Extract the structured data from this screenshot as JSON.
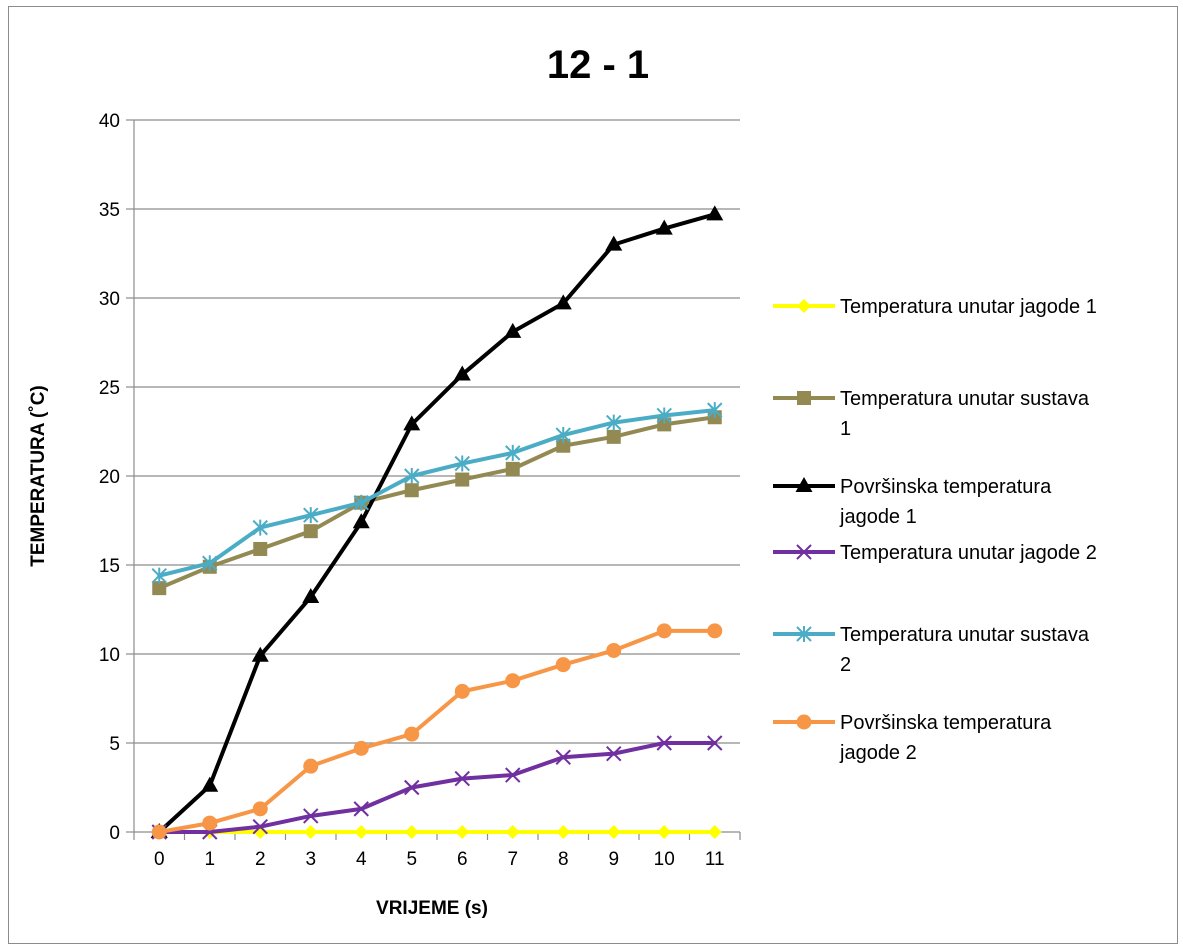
{
  "chart_data": {
    "type": "line",
    "title": "12 - 1",
    "xlabel": "VRIJEME (s)",
    "ylabel": "TEMPERATURA (˚C)",
    "categories": [
      "0",
      "1",
      "2",
      "3",
      "4",
      "5",
      "6",
      "7",
      "8",
      "9",
      "10",
      "11"
    ],
    "ylim": [
      0,
      40
    ],
    "yticks": [
      0,
      5,
      10,
      15,
      20,
      25,
      30,
      35,
      40
    ],
    "grid": true,
    "legend_position": "right",
    "series": [
      {
        "name": "Temperatura unutar jagode 1",
        "color": "#ffff00",
        "marker": "diamond",
        "values": [
          0,
          0,
          0,
          0,
          0,
          0,
          0,
          0,
          0,
          0,
          0,
          0
        ]
      },
      {
        "name": "Temperatura unutar sustava 1",
        "color": "#938953",
        "marker": "square",
        "values": [
          13.7,
          14.9,
          15.9,
          16.9,
          18.5,
          19.2,
          19.8,
          20.4,
          21.7,
          22.2,
          22.9,
          23.3
        ]
      },
      {
        "name": "Površinska temperatura jagode 1",
        "color": "#000000",
        "marker": "triangle",
        "values": [
          0,
          2.6,
          9.9,
          13.2,
          17.4,
          22.9,
          25.7,
          28.1,
          29.7,
          33.0,
          33.9,
          34.7
        ]
      },
      {
        "name": "Temperatura unutar jagode 2",
        "color": "#7030a0",
        "marker": "x",
        "values": [
          0,
          0,
          0.3,
          0.9,
          1.3,
          2.5,
          3.0,
          3.2,
          4.2,
          4.4,
          5.0,
          5.0
        ]
      },
      {
        "name": "Temperatura unutar sustava 2",
        "color": "#4bacc6",
        "marker": "star",
        "values": [
          14.4,
          15.1,
          17.1,
          17.8,
          18.5,
          20.0,
          20.7,
          21.3,
          22.3,
          23.0,
          23.4,
          23.7
        ]
      },
      {
        "name": "Površinska temperatura jagode 2",
        "color": "#f79646",
        "marker": "circle",
        "values": [
          0,
          0.5,
          1.3,
          3.7,
          4.7,
          5.5,
          7.9,
          8.5,
          9.4,
          10.2,
          11.3,
          11.3
        ]
      }
    ],
    "legend_lines": [
      [
        "Temperatura unutar jagode 1"
      ],
      [
        "Temperatura unutar sustava",
        "1"
      ],
      [
        "Površinska temperatura",
        "jagode 1"
      ],
      [
        "Temperatura unutar jagode 2"
      ],
      [
        "Temperatura unutar sustava",
        "2"
      ],
      [
        "Površinska temperatura",
        "jagode 2"
      ]
    ]
  }
}
